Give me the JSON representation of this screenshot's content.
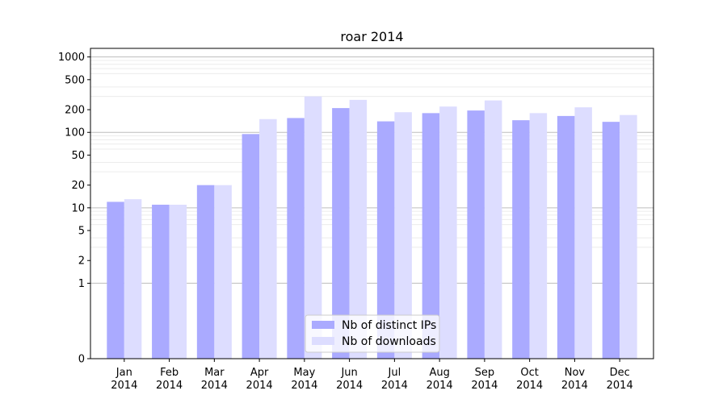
{
  "chart_data": {
    "type": "bar",
    "title": "roar 2014",
    "xlabel": "",
    "ylabel": "",
    "y_scale": "symlog",
    "y_ticks": [
      0,
      1,
      2,
      5,
      10,
      20,
      50,
      100,
      200,
      500,
      1000
    ],
    "ylim": [
      0,
      1300
    ],
    "grid": "horizontal",
    "legend_position": "bottom-center",
    "categories": [
      "Jan\n2014",
      "Feb\n2014",
      "Mar\n2014",
      "Apr\n2014",
      "May\n2014",
      "Jun\n2014",
      "Jul\n2014",
      "Aug\n2014",
      "Sep\n2014",
      "Oct\n2014",
      "Nov\n2014",
      "Dec\n2014"
    ],
    "series": [
      {
        "name": "Nb of distinct IPs",
        "color": "#aaaaff",
        "values": [
          12,
          11,
          20,
          95,
          155,
          210,
          140,
          180,
          195,
          145,
          165,
          138
        ]
      },
      {
        "name": "Nb of downloads",
        "color": "#ddddff",
        "values": [
          13,
          11,
          20,
          150,
          300,
          270,
          185,
          220,
          265,
          180,
          215,
          170
        ]
      }
    ]
  }
}
